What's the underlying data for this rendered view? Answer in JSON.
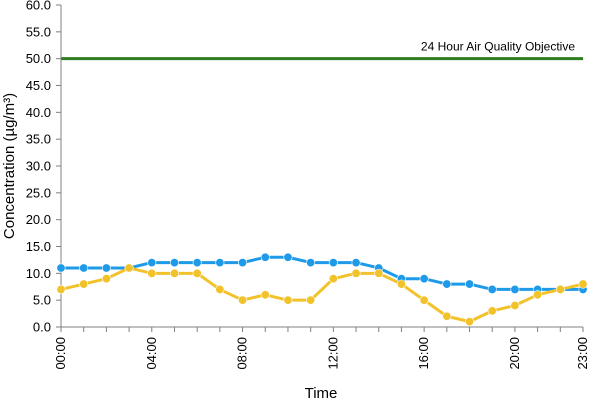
{
  "chart_data": {
    "type": "line",
    "title": "",
    "xlabel": "Time",
    "ylabel": "Concentration (µg/m³)",
    "ylim": [
      0,
      60
    ],
    "ytick_values": [
      0,
      5,
      10,
      15,
      20,
      25,
      30,
      35,
      40,
      45,
      50,
      55,
      60
    ],
    "ytick_labels": [
      "0.0",
      "5.0",
      "10.0",
      "15.0",
      "20.0",
      "25.0",
      "30.0",
      "35.0",
      "40.0",
      "45.0",
      "50.0",
      "55.0",
      "60.0"
    ],
    "x": [
      "00:00",
      "01:00",
      "02:00",
      "03:00",
      "04:00",
      "05:00",
      "06:00",
      "07:00",
      "08:00",
      "09:00",
      "10:00",
      "11:00",
      "12:00",
      "13:00",
      "14:00",
      "15:00",
      "16:00",
      "17:00",
      "18:00",
      "19:00",
      "20:00",
      "21:00",
      "22:00",
      "23:00"
    ],
    "xtick_labels": [
      "00:00",
      "04:00",
      "08:00",
      "12:00",
      "16:00",
      "20:00",
      "23:00"
    ],
    "grid": false,
    "legend": "none",
    "series": [
      {
        "color": "#1f9ae8",
        "values": [
          11,
          11,
          11,
          11,
          12,
          12,
          12,
          12,
          12,
          13,
          13,
          12,
          12,
          12,
          11,
          9,
          9,
          8,
          8,
          7,
          7,
          7,
          7,
          7
        ]
      },
      {
        "color": "#f2c22a",
        "values": [
          7,
          8,
          9,
          11,
          10,
          10,
          10,
          7,
          5,
          6,
          5,
          5,
          9,
          10,
          10,
          8,
          5,
          2,
          1,
          3,
          4,
          6,
          7,
          8
        ]
      }
    ],
    "reference_line": {
      "value": 50,
      "label": "24 Hour Air Quality Objective",
      "color": "#2e7d1e"
    }
  }
}
